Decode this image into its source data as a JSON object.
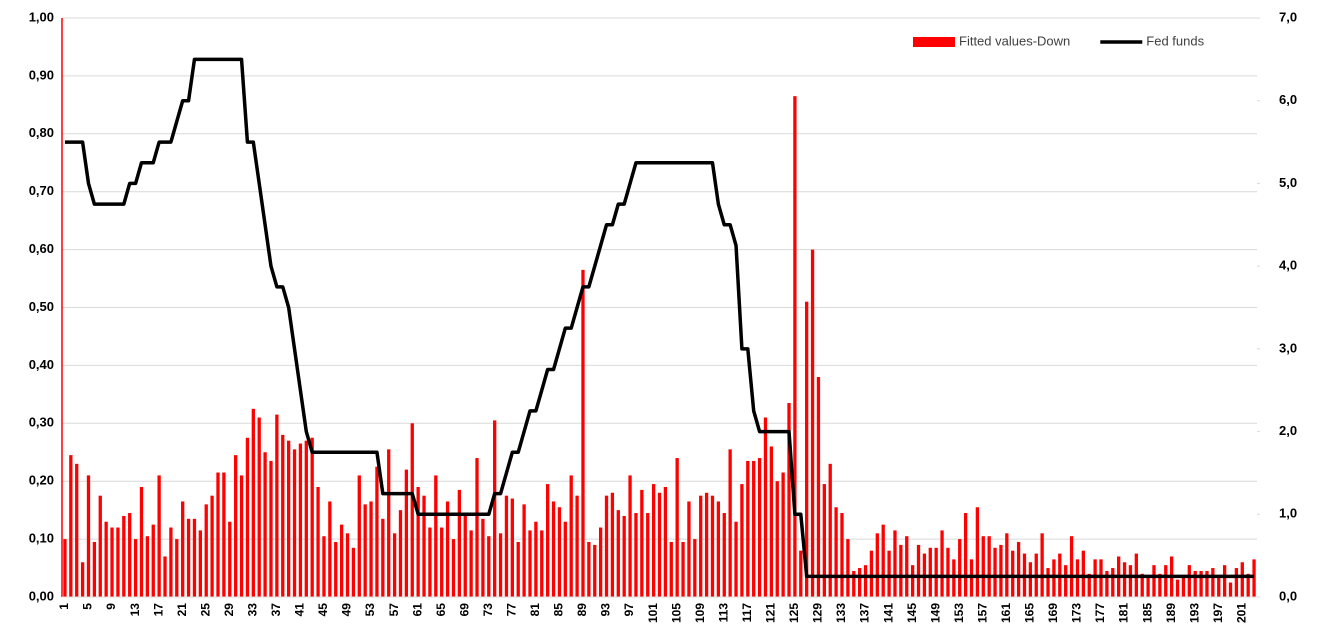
{
  "chart_data": {
    "type": "bar",
    "categories": [
      "1",
      null,
      null,
      null,
      "5",
      null,
      null,
      null,
      "9",
      null,
      null,
      null,
      "13",
      null,
      null,
      null,
      "17",
      null,
      null,
      null,
      "21",
      null,
      null,
      null,
      "25",
      null,
      null,
      null,
      "29",
      null,
      null,
      null,
      "33",
      null,
      null,
      null,
      "37",
      null,
      null,
      null,
      "41",
      null,
      null,
      null,
      "45",
      null,
      null,
      null,
      "49",
      null,
      null,
      null,
      "53",
      null,
      null,
      null,
      "57",
      null,
      null,
      null,
      "61",
      null,
      null,
      null,
      "65",
      null,
      null,
      null,
      "69",
      null,
      null,
      null,
      "73",
      null,
      null,
      null,
      "77",
      null,
      null,
      null,
      "81",
      null,
      null,
      null,
      "85",
      null,
      null,
      null,
      "89",
      null,
      null,
      null,
      "93",
      null,
      null,
      null,
      "97",
      null,
      null,
      null,
      "101",
      null,
      null,
      null,
      "105",
      null,
      null,
      null,
      "109",
      null,
      null,
      null,
      "113",
      null,
      null,
      null,
      "117",
      null,
      null,
      null,
      "121",
      null,
      null,
      null,
      "125",
      null,
      null,
      null,
      "129",
      null,
      null,
      null,
      "133",
      null,
      null,
      null,
      "137",
      null,
      null,
      null,
      "141",
      null,
      null,
      null,
      "145",
      null,
      null,
      null,
      "149",
      null,
      null,
      null,
      "153",
      null,
      null,
      null,
      "157",
      null,
      null,
      null,
      "161",
      null,
      null,
      null,
      "165",
      null,
      null,
      null,
      "169",
      null,
      null,
      null,
      "173",
      null,
      null,
      null,
      "177",
      null,
      null,
      null,
      "181",
      null,
      null,
      null,
      "185",
      null,
      null,
      null,
      "189",
      null,
      null,
      null,
      "193",
      null,
      null,
      null,
      "197",
      null,
      null,
      null,
      "201",
      null,
      null
    ],
    "series": [
      {
        "name": "Fitted values-Down",
        "type": "bar",
        "color": "#ff0000",
        "values": [
          0.1,
          0.245,
          0.23,
          0.06,
          0.21,
          0.095,
          0.175,
          0.13,
          0.12,
          0.12,
          0.14,
          0.145,
          0.1,
          0.19,
          0.105,
          0.125,
          0.21,
          0.07,
          0.12,
          0.1,
          0.165,
          0.135,
          0.135,
          0.115,
          0.16,
          0.175,
          0.215,
          0.215,
          0.13,
          0.245,
          0.21,
          0.275,
          0.325,
          0.31,
          0.25,
          0.235,
          0.315,
          0.28,
          0.27,
          0.255,
          0.265,
          0.27,
          0.275,
          0.19,
          0.105,
          0.165,
          0.095,
          0.125,
          0.11,
          0.085,
          0.21,
          0.16,
          0.165,
          0.225,
          0.135,
          0.255,
          0.11,
          0.15,
          0.22,
          0.3,
          0.19,
          0.175,
          0.12,
          0.21,
          0.12,
          0.165,
          0.1,
          0.185,
          0.14,
          0.115,
          0.24,
          0.135,
          0.105,
          0.305,
          0.11,
          0.175,
          0.17,
          0.095,
          0.16,
          0.115,
          0.13,
          0.115,
          0.195,
          0.165,
          0.155,
          0.13,
          0.21,
          0.175,
          0.565,
          0.095,
          0.09,
          0.12,
          0.175,
          0.18,
          0.15,
          0.14,
          0.21,
          0.145,
          0.185,
          0.145,
          0.195,
          0.18,
          0.19,
          0.095,
          0.24,
          0.095,
          0.165,
          0.1,
          0.175,
          0.18,
          0.175,
          0.165,
          0.145,
          0.255,
          0.13,
          0.195,
          0.235,
          0.235,
          0.24,
          0.31,
          0.26,
          0.2,
          0.215,
          0.335,
          0.865,
          0.08,
          0.51,
          0.6,
          0.38,
          0.195,
          0.23,
          0.155,
          0.145,
          0.1,
          0.045,
          0.05,
          0.055,
          0.08,
          0.11,
          0.125,
          0.08,
          0.115,
          0.09,
          0.105,
          0.055,
          0.09,
          0.075,
          0.085,
          0.085,
          0.115,
          0.085,
          0.065,
          0.1,
          0.145,
          0.065,
          0.155,
          0.105,
          0.105,
          0.085,
          0.09,
          0.11,
          0.08,
          0.095,
          0.075,
          0.06,
          0.075,
          0.11,
          0.05,
          0.065,
          0.075,
          0.055,
          0.105,
          0.065,
          0.08,
          0.04,
          0.065,
          0.065,
          0.045,
          0.05,
          0.07,
          0.06,
          0.055,
          0.075,
          0.04,
          0.035,
          0.055,
          0.04,
          0.055,
          0.07,
          0.03,
          0.035,
          0.055,
          0.045,
          0.045,
          0.045,
          0.05,
          0.035,
          0.055,
          0.025,
          0.05,
          0.06,
          0.04,
          0.065
        ]
      },
      {
        "name": "Fed funds",
        "type": "line",
        "axis": "y2",
        "color": "#000000",
        "values": [
          5.5,
          5.5,
          5.5,
          5.5,
          5.0,
          4.75,
          4.75,
          4.75,
          4.75,
          4.75,
          4.75,
          5.0,
          5.0,
          5.25,
          5.25,
          5.25,
          5.5,
          5.5,
          5.5,
          5.75,
          6.0,
          6.0,
          6.5,
          6.5,
          6.5,
          6.5,
          6.5,
          6.5,
          6.5,
          6.5,
          6.5,
          5.5,
          5.5,
          5.0,
          4.5,
          4.0,
          3.75,
          3.75,
          3.5,
          3.0,
          2.5,
          2.0,
          1.75,
          1.75,
          1.75,
          1.75,
          1.75,
          1.75,
          1.75,
          1.75,
          1.75,
          1.75,
          1.75,
          1.75,
          1.25,
          1.25,
          1.25,
          1.25,
          1.25,
          1.25,
          1.0,
          1.0,
          1.0,
          1.0,
          1.0,
          1.0,
          1.0,
          1.0,
          1.0,
          1.0,
          1.0,
          1.0,
          1.0,
          1.25,
          1.25,
          1.5,
          1.75,
          1.75,
          2.0,
          2.25,
          2.25,
          2.5,
          2.75,
          2.75,
          3.0,
          3.25,
          3.25,
          3.5,
          3.75,
          3.75,
          4.0,
          4.25,
          4.5,
          4.5,
          4.75,
          4.75,
          5.0,
          5.25,
          5.25,
          5.25,
          5.25,
          5.25,
          5.25,
          5.25,
          5.25,
          5.25,
          5.25,
          5.25,
          5.25,
          5.25,
          5.25,
          4.75,
          4.5,
          4.5,
          4.25,
          3.0,
          3.0,
          2.25,
          2.0,
          2.0,
          2.0,
          2.0,
          2.0,
          2.0,
          1.0,
          1.0,
          0.25,
          0.25,
          0.25,
          0.25,
          0.25,
          0.25,
          0.25,
          0.25,
          0.25,
          0.25,
          0.25,
          0.25,
          0.25,
          0.25,
          0.25,
          0.25,
          0.25,
          0.25,
          0.25,
          0.25,
          0.25,
          0.25,
          0.25,
          0.25,
          0.25,
          0.25,
          0.25,
          0.25,
          0.25,
          0.25,
          0.25,
          0.25,
          0.25,
          0.25,
          0.25,
          0.25,
          0.25,
          0.25,
          0.25,
          0.25,
          0.25,
          0.25,
          0.25,
          0.25,
          0.25,
          0.25,
          0.25,
          0.25,
          0.25,
          0.25,
          0.25,
          0.25,
          0.25,
          0.25,
          0.25,
          0.25,
          0.25,
          0.25,
          0.25,
          0.25,
          0.25,
          0.25,
          0.25,
          0.25,
          0.25,
          0.25,
          0.25,
          0.25,
          0.25,
          0.25,
          0.25,
          0.25,
          0.25,
          0.25,
          0.25,
          0.25,
          0.25
        ]
      }
    ],
    "ylim": [
      0,
      1
    ],
    "yticks": [
      {
        "value": 0,
        "label": "0,00"
      },
      {
        "value": 0.1,
        "label": "0,10"
      },
      {
        "value": 0.2,
        "label": "0,20"
      },
      {
        "value": 0.3,
        "label": "0,30"
      },
      {
        "value": 0.4,
        "label": "0,40"
      },
      {
        "value": 0.5,
        "label": "0,50"
      },
      {
        "value": 0.6,
        "label": "0,60"
      },
      {
        "value": 0.7,
        "label": "0,70"
      },
      {
        "value": 0.8,
        "label": "0,80"
      },
      {
        "value": 0.9,
        "label": "0,90"
      },
      {
        "value": 1,
        "label": "1,00"
      }
    ],
    "y2lim": [
      0,
      7
    ],
    "y2ticks": [
      {
        "value": 0,
        "label": "0,0"
      },
      {
        "value": 1,
        "label": "1,0"
      },
      {
        "value": 2,
        "label": "2,0"
      },
      {
        "value": 3,
        "label": "3,0"
      },
      {
        "value": 4,
        "label": "4,0"
      },
      {
        "value": 5,
        "label": "5,0"
      },
      {
        "value": 6,
        "label": "6,0"
      },
      {
        "value": 7,
        "label": "7,0"
      }
    ],
    "ytick_color": "#ff0000",
    "grid": true,
    "legend": "top-right"
  }
}
